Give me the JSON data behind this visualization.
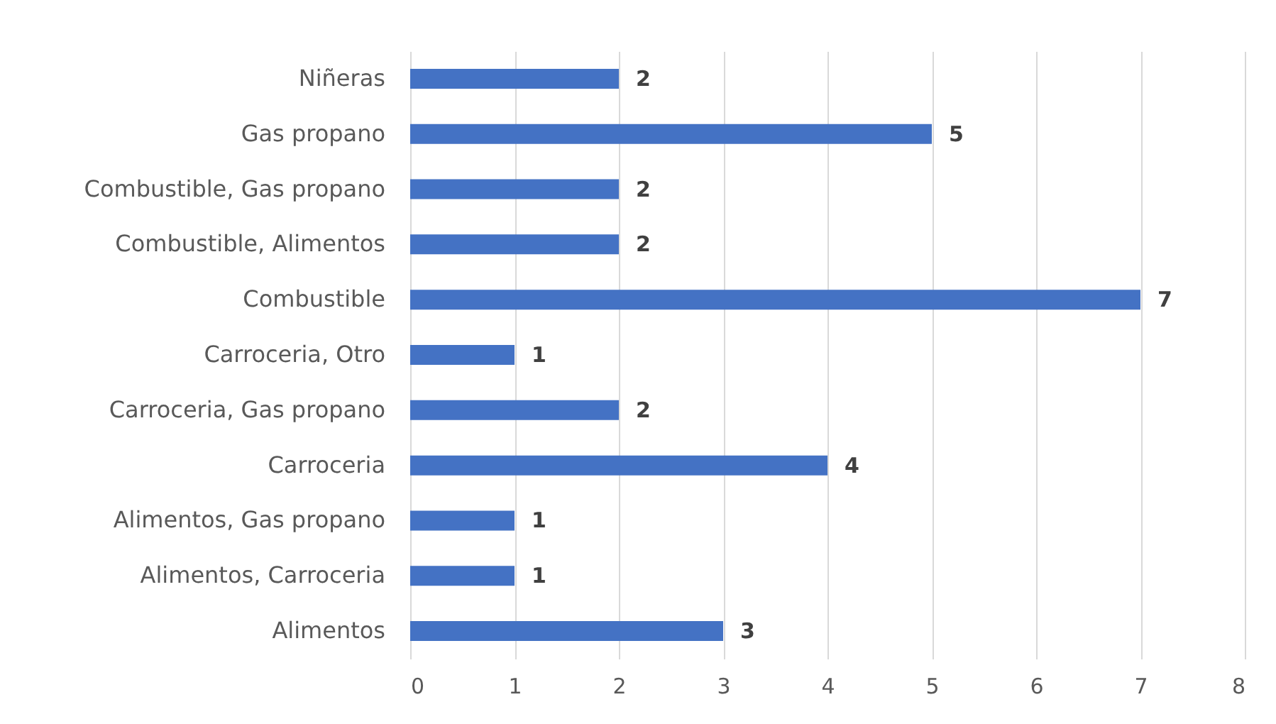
{
  "chart_data": {
    "type": "bar",
    "orientation": "horizontal",
    "categories": [
      "Niñeras",
      "Gas propano",
      "Combustible, Gas propano",
      "Combustible, Alimentos",
      "Combustible",
      "Carroceria, Otro",
      "Carroceria, Gas propano",
      "Carroceria",
      "Alimentos, Gas propano",
      "Alimentos, Carroceria",
      "Alimentos"
    ],
    "values": [
      2,
      5,
      2,
      2,
      7,
      1,
      2,
      4,
      1,
      1,
      3
    ],
    "color": "#4472c4",
    "xlim": [
      0,
      8
    ],
    "xticks": [
      0,
      1,
      2,
      3,
      4,
      5,
      6,
      7,
      8
    ],
    "grid": "x",
    "data_labels": true
  }
}
